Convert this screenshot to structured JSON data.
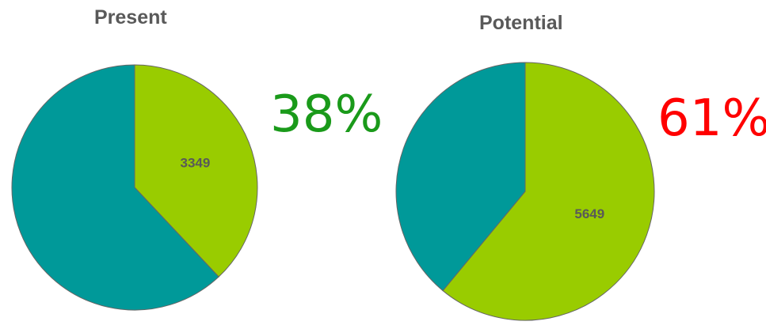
{
  "chart_data": [
    {
      "type": "pie",
      "title": "Present",
      "slices": [
        {
          "value": 3349,
          "color": "#99cc00",
          "label": "3349"
        },
        {
          "value": 5464,
          "color": "#009999",
          "label": ""
        }
      ],
      "highlight": {
        "text": "38%",
        "color": "#1a9a1a"
      }
    },
    {
      "type": "pie",
      "title": "Potential",
      "slices": [
        {
          "value": 5649,
          "color": "#99cc00",
          "label": "5649"
        },
        {
          "value": 3611,
          "color": "#009999",
          "label": ""
        }
      ],
      "highlight": {
        "text": "61%",
        "color": "#ff0000"
      }
    }
  ]
}
